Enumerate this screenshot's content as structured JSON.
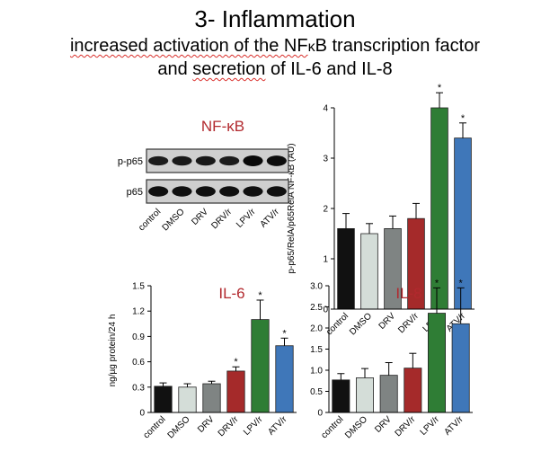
{
  "slide": {
    "title": "3- Inflammation",
    "subtitle_prefix": "increased activation of the NF",
    "subtitle_kappa": "κ",
    "subtitle_mid": "B transcription factor",
    "subtitle_line2_a": "and",
    "subtitle_line2_b": "secretion",
    "subtitle_line2_c": "of IL-6 and IL-8"
  },
  "colors": {
    "control": "#111111",
    "DMSO": "#d4ddd8",
    "DRV": "#7f8483",
    "DRV/r": "#a52a2a",
    "LPV/r": "#2f7d35",
    "ATV/r": "#3f77b9",
    "panel_title": "#b2292e"
  },
  "blot": {
    "title": "NF-κB",
    "rows": [
      "p-p65",
      "p65"
    ],
    "lanes": [
      "control",
      "DMSO",
      "DRV",
      "DRV/r",
      "LPV/r",
      "ATV/r"
    ],
    "band_intensity": {
      "p-p65": [
        0.7,
        0.75,
        0.75,
        0.7,
        1.0,
        0.95
      ],
      "p65": [
        0.9,
        0.9,
        0.9,
        0.9,
        0.9,
        0.9
      ]
    }
  },
  "chart_data": [
    {
      "id": "nfkb",
      "type": "bar",
      "title": "",
      "ylabel": "p-p65/RelA/p65RelA NF-κB (AU)",
      "categories": [
        "control",
        "DMSO",
        "DRV",
        "DRV/r",
        "LPV/r",
        "ATV/r"
      ],
      "values": [
        1.6,
        1.5,
        1.6,
        1.8,
        4.0,
        3.4
      ],
      "errors": [
        0.3,
        0.2,
        0.25,
        0.3,
        0.3,
        0.3
      ],
      "significant": [
        false,
        false,
        false,
        false,
        true,
        true
      ],
      "ylim": [
        0,
        4
      ],
      "yticks": [
        "0",
        "1",
        "2",
        "3",
        "4"
      ],
      "grid": false
    },
    {
      "id": "il6",
      "type": "bar",
      "title": "IL-6",
      "ylabel": "ng/µg protein/24 h",
      "categories": [
        "control",
        "DMSO",
        "DRV",
        "DRV/r",
        "LPV/r",
        "ATV/r"
      ],
      "values": [
        0.31,
        0.3,
        0.34,
        0.49,
        1.1,
        0.79
      ],
      "errors": [
        0.04,
        0.04,
        0.03,
        0.05,
        0.23,
        0.09
      ],
      "significant": [
        false,
        false,
        false,
        true,
        true,
        true
      ],
      "ylim": [
        0,
        1.5
      ],
      "yticks": [
        "0",
        "0.3",
        "0.6",
        "0.9",
        "1.2",
        "1.5"
      ],
      "grid": false
    },
    {
      "id": "il8",
      "type": "bar",
      "title": "IL-8",
      "ylabel": "",
      "categories": [
        "control",
        "DMSO",
        "DRV",
        "DRV/r",
        "LPV/r",
        "ATV/r"
      ],
      "values": [
        0.77,
        0.82,
        0.88,
        1.05,
        2.35,
        2.1
      ],
      "errors": [
        0.15,
        0.22,
        0.3,
        0.35,
        0.6,
        0.85
      ],
      "significant": [
        false,
        false,
        false,
        false,
        true,
        true
      ],
      "ylim": [
        0,
        3
      ],
      "yticks": [
        "0",
        "0.5",
        "1.0",
        "1.5",
        "2.0",
        "2.5",
        "3.0"
      ],
      "grid": false
    }
  ]
}
